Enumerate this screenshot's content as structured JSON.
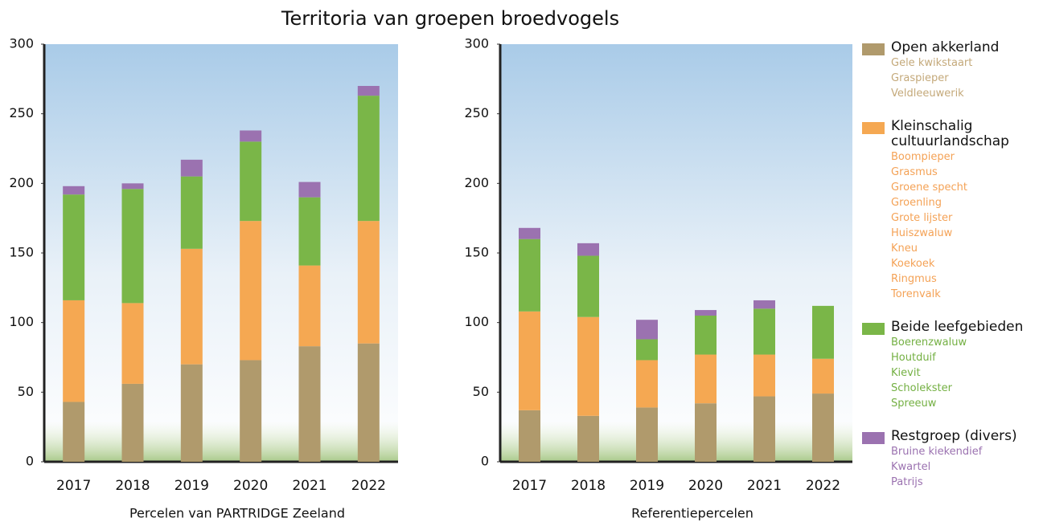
{
  "title": "Territoria van groepen broedvogels",
  "legend": [
    {
      "name": "Open akkerland",
      "color": "#b09a6c",
      "species_color": "#c4a97a",
      "species": [
        "Gele kwikstaart",
        "Graspieper",
        "Veldleeuwerik"
      ]
    },
    {
      "name": "Kleinschalig cultuurlandschap",
      "color": "#f5a852",
      "species_color": "#f4a256",
      "species": [
        "Boompieper",
        "Grasmus",
        "Groene specht",
        "Groenling",
        "Grote lijster",
        "Huiszwaluw",
        "Kneu",
        "Koekoek",
        "Ringmus",
        "Torenvalk"
      ]
    },
    {
      "name": "Beide leefgebieden",
      "color": "#7ab648",
      "species_color": "#74b043",
      "species": [
        "Boerenzwaluw",
        "Houtduif",
        "Kievit",
        "Scholekster",
        "Spreeuw"
      ]
    },
    {
      "name": "Restgroep (divers)",
      "color": "#9b72b0",
      "species_color": "#9b72b0",
      "species": [
        "Bruine kiekendief",
        "Kwartel",
        "Patrijs"
      ]
    }
  ],
  "chart_data": [
    {
      "type": "bar",
      "stacked": true,
      "x_label": "Percelen van PARTRIDGE Zeeland",
      "categories": [
        "2017",
        "2018",
        "2019",
        "2020",
        "2021",
        "2022"
      ],
      "series": [
        {
          "values": [
            43,
            56,
            70,
            73,
            83,
            85
          ]
        },
        {
          "values": [
            73,
            58,
            83,
            100,
            58,
            88
          ]
        },
        {
          "values": [
            76,
            82,
            52,
            57,
            49,
            90
          ]
        },
        {
          "values": [
            6,
            4,
            12,
            8,
            11,
            7
          ]
        }
      ],
      "ylim": [
        0,
        300
      ],
      "yticks": [
        0,
        50,
        100,
        150,
        200,
        250,
        300
      ]
    },
    {
      "type": "bar",
      "stacked": true,
      "x_label": "Referentiepercelen",
      "categories": [
        "2017",
        "2018",
        "2019",
        "2020",
        "2021",
        "2022"
      ],
      "series": [
        {
          "values": [
            37,
            33,
            39,
            42,
            47,
            49
          ]
        },
        {
          "values": [
            71,
            71,
            34,
            35,
            30,
            25
          ]
        },
        {
          "values": [
            52,
            44,
            15,
            28,
            33,
            38
          ]
        },
        {
          "values": [
            8,
            9,
            14,
            4,
            6,
            0
          ]
        }
      ],
      "ylim": [
        0,
        300
      ],
      "yticks": [
        0,
        50,
        100,
        150,
        200,
        250,
        300
      ]
    }
  ]
}
